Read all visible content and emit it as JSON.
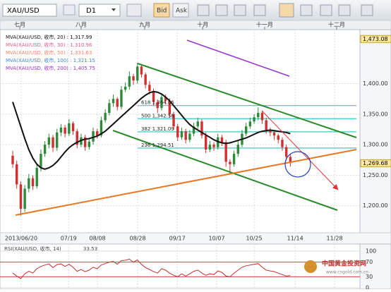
{
  "toolbar": {
    "symbol": "XAU/USD",
    "timeframe": "D1",
    "bid": "Bid",
    "ask": "Ask"
  },
  "chart_data": {
    "type": "candlestick",
    "up_color": "#2e8b3a",
    "down_color": "#d03030",
    "ylim": [
      1155.8,
      1488.4
    ],
    "yticks": [
      {
        "value": 1200,
        "label": "1,200.00"
      },
      {
        "value": 1250,
        "label": "1,250.00"
      },
      {
        "value": 1300,
        "label": "1,300.00"
      },
      {
        "value": 1350,
        "label": "1,350.00"
      },
      {
        "value": 1400,
        "label": "1,400.00"
      }
    ],
    "price_markers": [
      {
        "value": 1473.08,
        "label": "1,473.08"
      },
      {
        "value": 1269.68,
        "label": "1,269.68"
      }
    ],
    "xlim": [
      -3.16,
      86.3
    ],
    "xticks": [
      {
        "value": 2.1,
        "label": "2013/06/20"
      },
      {
        "value": 13.9,
        "label": "07/19"
      },
      {
        "value": 21.05,
        "label": "08/08"
      },
      {
        "value": 31.05,
        "label": "08/28"
      },
      {
        "value": 40.9,
        "label": "09/17"
      },
      {
        "value": 50.7,
        "label": "10/07"
      },
      {
        "value": 60,
        "label": "10/25"
      },
      {
        "value": 70.2,
        "label": "11/14"
      },
      {
        "value": 80,
        "label": "11/28"
      }
    ],
    "month_ticks": [
      {
        "value": 1.75,
        "label": "七月"
      },
      {
        "value": 17,
        "label": "八月"
      },
      {
        "value": 32.8,
        "label": "九月"
      },
      {
        "value": 47.2,
        "label": "十月"
      },
      {
        "value": 62.6,
        "label": "十一月"
      },
      {
        "value": 80.5,
        "label": "十二月"
      }
    ],
    "ma_legend": [
      {
        "text": "MVA(XAU/USD, 收市, 20) : 1,317.99",
        "color": "#111111"
      },
      {
        "text": "MVA(XAU/USD, 收市, 30) : 1,310.96",
        "color": "#e05a8a"
      },
      {
        "text": "MVA(XAU/USD, 收市, 50) : 1,331.63",
        "color": "#e8866a"
      },
      {
        "text": "MVA(XAU/USD, 收市, 100) : 1,321.15",
        "color": "#3a8ad8"
      },
      {
        "text": "MVA(XAU/USD, 收市, 200) : 1,405.75",
        "color": "#a030c8"
      }
    ],
    "fib_levels": [
      {
        "value": 1364.06,
        "label": "618 1,364.06"
      },
      {
        "value": 1342.58,
        "label": "500 1,342.58"
      },
      {
        "value": 1321.09,
        "label": "382 1,321.09"
      },
      {
        "value": 1294.51,
        "label": "236 1,294.51"
      }
    ],
    "candles": [
      [
        1282,
        1290,
        1262,
        1268
      ],
      [
        1268,
        1274,
        1228,
        1235
      ],
      [
        1235,
        1240,
        1184,
        1195
      ],
      [
        1195,
        1234,
        1190,
        1228
      ],
      [
        1228,
        1252,
        1222,
        1245
      ],
      [
        1245,
        1250,
        1226,
        1232
      ],
      [
        1232,
        1268,
        1228,
        1262
      ],
      [
        1262,
        1292,
        1256,
        1285
      ],
      [
        1285,
        1306,
        1280,
        1300
      ],
      [
        1300,
        1318,
        1294,
        1312
      ],
      [
        1312,
        1316,
        1288,
        1295
      ],
      [
        1295,
        1326,
        1290,
        1320
      ],
      [
        1320,
        1334,
        1314,
        1328
      ],
      [
        1328,
        1332,
        1312,
        1318
      ],
      [
        1318,
        1342,
        1314,
        1335
      ],
      [
        1335,
        1338,
        1316,
        1322
      ],
      [
        1322,
        1326,
        1294,
        1300
      ],
      [
        1300,
        1318,
        1296,
        1312
      ],
      [
        1312,
        1316,
        1290,
        1296
      ],
      [
        1296,
        1310,
        1292,
        1305
      ],
      [
        1305,
        1328,
        1300,
        1322
      ],
      [
        1322,
        1326,
        1310,
        1315
      ],
      [
        1315,
        1346,
        1312,
        1340
      ],
      [
        1340,
        1358,
        1336,
        1352
      ],
      [
        1352,
        1374,
        1348,
        1368
      ],
      [
        1368,
        1382,
        1362,
        1375
      ],
      [
        1375,
        1378,
        1356,
        1362
      ],
      [
        1362,
        1396,
        1358,
        1390
      ],
      [
        1390,
        1402,
        1386,
        1395
      ],
      [
        1395,
        1420,
        1390,
        1412
      ],
      [
        1412,
        1416,
        1398,
        1405
      ],
      [
        1405,
        1434,
        1400,
        1428
      ],
      [
        1428,
        1432,
        1410,
        1415
      ],
      [
        1415,
        1418,
        1392,
        1398
      ],
      [
        1398,
        1404,
        1382,
        1388
      ],
      [
        1388,
        1392,
        1364,
        1370
      ],
      [
        1370,
        1374,
        1352,
        1360
      ],
      [
        1360,
        1384,
        1356,
        1378
      ],
      [
        1378,
        1382,
        1366,
        1372
      ],
      [
        1372,
        1376,
        1344,
        1350
      ],
      [
        1350,
        1354,
        1324,
        1330
      ],
      [
        1330,
        1334,
        1306,
        1312
      ],
      [
        1312,
        1328,
        1308,
        1322
      ],
      [
        1322,
        1326,
        1302,
        1308
      ],
      [
        1308,
        1324,
        1304,
        1318
      ],
      [
        1318,
        1336,
        1314,
        1330
      ],
      [
        1330,
        1344,
        1326,
        1338
      ],
      [
        1338,
        1342,
        1310,
        1315
      ],
      [
        1315,
        1320,
        1286,
        1292
      ],
      [
        1292,
        1306,
        1288,
        1300
      ],
      [
        1300,
        1304,
        1290,
        1296
      ],
      [
        1296,
        1318,
        1292,
        1312
      ],
      [
        1312,
        1316,
        1298,
        1304
      ],
      [
        1304,
        1308,
        1264,
        1272
      ],
      [
        1272,
        1276,
        1251,
        1268
      ],
      [
        1268,
        1290,
        1264,
        1285
      ],
      [
        1285,
        1306,
        1280,
        1300
      ],
      [
        1300,
        1324,
        1296,
        1318
      ],
      [
        1318,
        1336,
        1314,
        1330
      ],
      [
        1330,
        1344,
        1326,
        1338
      ],
      [
        1338,
        1350,
        1334,
        1345
      ],
      [
        1345,
        1361,
        1340,
        1352
      ],
      [
        1352,
        1356,
        1334,
        1340
      ],
      [
        1340,
        1344,
        1318,
        1324
      ],
      [
        1324,
        1328,
        1314,
        1320
      ],
      [
        1320,
        1324,
        1308,
        1315
      ],
      [
        1315,
        1318,
        1302,
        1308
      ],
      [
        1308,
        1312,
        1290,
        1296
      ],
      [
        1296,
        1300,
        1274,
        1280
      ],
      [
        1280,
        1284,
        1264,
        1270
      ]
    ],
    "ma_line": {
      "color": "#111111",
      "values": [
        1370,
        1350,
        1330,
        1310,
        1292,
        1278,
        1268,
        1262,
        1260,
        1262,
        1266,
        1272,
        1280,
        1288,
        1295,
        1300,
        1304,
        1307,
        1309,
        1310,
        1312,
        1314,
        1318,
        1322,
        1328,
        1334,
        1340,
        1346,
        1352,
        1358,
        1364,
        1370,
        1376,
        1381,
        1385,
        1387,
        1386,
        1383,
        1378,
        1372,
        1364,
        1356,
        1348,
        1340,
        1333,
        1328,
        1324,
        1320,
        1316,
        1312,
        1308,
        1305,
        1303,
        1302,
        1303,
        1305,
        1307,
        1309,
        1311,
        1314,
        1317,
        1320,
        1322,
        1323,
        1324,
        1323,
        1322,
        1321,
        1320,
        1318
      ]
    },
    "rsi": {
      "label": "RSI(XAU/USD, 收市, 14)",
      "color": "#c03030",
      "ylim": [
        0,
        100
      ],
      "yticks": [
        0,
        30,
        70,
        100
      ],
      "values": [
        40,
        32,
        25,
        38,
        45,
        40,
        52,
        58,
        62,
        65,
        55,
        63,
        65,
        58,
        64,
        56,
        45,
        50,
        44,
        48,
        56,
        52,
        62,
        66,
        70,
        72,
        64,
        74,
        75,
        78,
        70,
        76,
        64,
        55,
        50,
        44,
        40,
        52,
        48,
        40,
        34,
        30,
        38,
        32,
        38,
        45,
        48,
        40,
        34,
        38,
        36,
        46,
        42,
        32,
        30,
        40,
        48,
        56,
        60,
        62,
        64,
        66,
        56,
        48,
        46,
        44,
        40,
        36,
        32,
        33.53
      ]
    }
  },
  "watermark": {
    "name": "中国黄金投资网",
    "url": "www.cngold.com.cn"
  }
}
